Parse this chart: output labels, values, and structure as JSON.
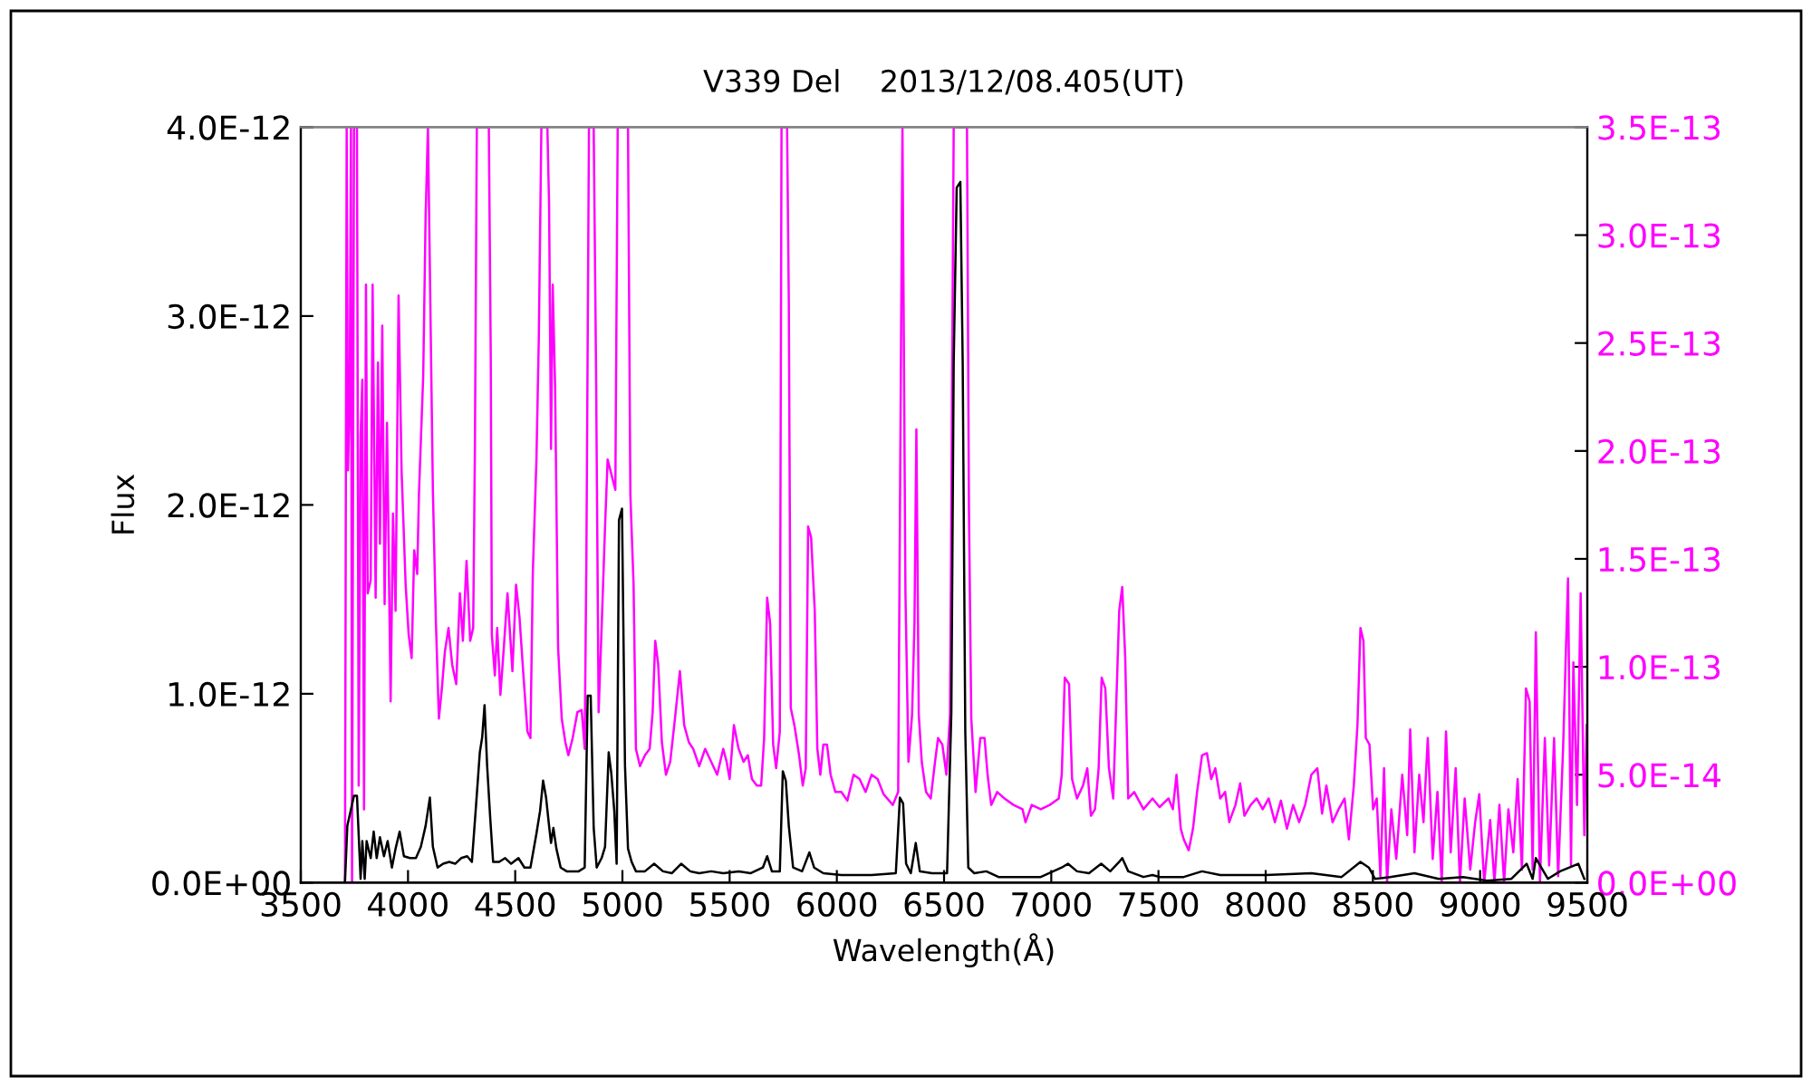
{
  "chart_data": {
    "type": "line",
    "title": "V339 Del    2013/12/08.405(UT)",
    "xlabel": "Wavelength(Å)",
    "ylabel": "Flux",
    "xlim": [
      3500,
      9500
    ],
    "xticks": [
      3500,
      4000,
      4500,
      5000,
      5500,
      6000,
      6500,
      7000,
      7500,
      8000,
      8500,
      9000,
      9500
    ],
    "ylim": [
      0,
      4e-12
    ],
    "yticks": [
      {
        "value": 0,
        "label": "0.0E+00"
      },
      {
        "value": 1e-12,
        "label": "1.0E-12"
      },
      {
        "value": 2e-12,
        "label": "2.0E-12"
      },
      {
        "value": 3e-12,
        "label": "3.0E-12"
      },
      {
        "value": 4e-12,
        "label": "4.0E-12"
      }
    ],
    "y2lim": [
      0,
      3.5e-13
    ],
    "y2ticks": [
      {
        "value": 0,
        "label": "0.0E+00"
      },
      {
        "value": 5e-14,
        "label": "5.0E-14"
      },
      {
        "value": 1e-13,
        "label": "1.0E-13"
      },
      {
        "value": 1.5e-13,
        "label": "1.5E-13"
      },
      {
        "value": 2e-13,
        "label": "2.0E-13"
      },
      {
        "value": 2.5e-13,
        "label": "2.5E-13"
      },
      {
        "value": 3e-13,
        "label": "3.0E-13"
      },
      {
        "value": 3.5e-13,
        "label": "3.5E-13"
      }
    ],
    "grid": false,
    "marker": "none",
    "line_style": "solid",
    "series": [
      {
        "color": "#000000",
        "x": [
          3706,
          3717,
          3748,
          3762,
          3779,
          3787,
          3798,
          3807,
          3826,
          3840,
          3854,
          3869,
          3888,
          3905,
          3925,
          3942,
          3961,
          3981,
          4009,
          4037,
          4060,
          4082,
          4102,
          4116,
          4138,
          4164,
          4192,
          4220,
          4248,
          4276,
          4298,
          4318,
          4335,
          4346,
          4357,
          4369,
          4383,
          4397,
          4425,
          4453,
          4481,
          4515,
          4543,
          4571,
          4599,
          4616,
          4630,
          4644,
          4658,
          4667,
          4678,
          4692,
          4712,
          4740,
          4768,
          4796,
          4824,
          4838,
          4852,
          4866,
          4880,
          4903,
          4919,
          4936,
          4948,
          4962,
          4973,
          4984,
          4998,
          5012,
          5026,
          5043,
          5063,
          5105,
          5148,
          5189,
          5231,
          5274,
          5316,
          5358,
          5414,
          5470,
          5542,
          5599,
          5655,
          5675,
          5697,
          5734,
          5748,
          5762,
          5776,
          5796,
          5838,
          5872,
          5894,
          5937,
          6021,
          6162,
          6275,
          6294,
          6309,
          6323,
          6345,
          6368,
          6387,
          6444,
          6514,
          6534,
          6545,
          6559,
          6576,
          6587,
          6599,
          6613,
          6641,
          6697,
          6754,
          6838,
          6951,
          7049,
          7078,
          7120,
          7176,
          7233,
          7275,
          7317,
          7331,
          7359,
          7430,
          7472,
          7505,
          7618,
          7703,
          7788,
          8000,
          8213,
          8354,
          8442,
          8481,
          8510,
          8580,
          8694,
          8807,
          8920,
          9033,
          9146,
          9217,
          9245,
          9260,
          9316,
          9373,
          9458,
          9486
        ],
        "values": [
          0,
          3e-13,
          4.6e-13,
          4.6e-13,
          2e-14,
          2.2e-13,
          2e-14,
          2.2e-13,
          1.3e-13,
          2.7e-13,
          1.3e-13,
          2.4e-13,
          1.4e-13,
          2.2e-13,
          8e-14,
          1.8e-13,
          2.7e-13,
          1.4e-13,
          1.3e-13,
          1.3e-13,
          1.9e-13,
          3e-13,
          4.5e-13,
          1.9e-13,
          8e-14,
          1e-13,
          1.1e-13,
          1e-13,
          1.3e-13,
          1.4e-13,
          1.1e-13,
          4.2e-13,
          6.9e-13,
          7.7e-13,
          9.4e-13,
          6.2e-13,
          3.5e-13,
          1.1e-13,
          1.1e-13,
          1.3e-13,
          1e-13,
          1.3e-13,
          8e-14,
          8e-14,
          2.6e-13,
          3.8e-13,
          5.4e-13,
          4.5e-13,
          3e-13,
          2.1e-13,
          2.9e-13,
          1.8e-13,
          8e-14,
          6e-14,
          6e-14,
          6e-14,
          8e-14,
          9.9e-13,
          9.9e-13,
          2.9e-13,
          8e-14,
          1.3e-13,
          1.9e-13,
          6.9e-13,
          5.8e-13,
          3.8e-13,
          1e-13,
          1.92e-12,
          1.98e-12,
          6.2e-13,
          1.8e-13,
          1.1e-13,
          6e-14,
          6e-14,
          1e-13,
          6e-14,
          5e-14,
          1e-13,
          6e-14,
          5e-14,
          6e-14,
          5e-14,
          6e-14,
          5e-14,
          8e-14,
          1.4e-13,
          6e-14,
          6e-14,
          5.9e-13,
          5.4e-13,
          3e-13,
          8e-14,
          6e-14,
          1.6e-13,
          8e-14,
          5e-14,
          4e-14,
          4e-14,
          5e-14,
          4.5e-13,
          4.2e-13,
          1e-13,
          5e-14,
          2.1e-13,
          6e-14,
          5e-14,
          5e-14,
          9e-13,
          2.75e-12,
          3.68e-12,
          3.71e-12,
          2.75e-12,
          8e-13,
          8e-14,
          5e-14,
          6e-14,
          3e-14,
          3e-14,
          3e-14,
          8e-14,
          1e-13,
          6e-14,
          5e-14,
          1e-13,
          6e-14,
          1.1e-13,
          1.3e-13,
          6e-14,
          3e-14,
          4e-14,
          3e-14,
          3e-14,
          6e-14,
          4e-14,
          4e-14,
          5e-14,
          3e-14,
          1.1e-13,
          8e-14,
          2e-14,
          3e-14,
          5e-14,
          2e-14,
          3e-14,
          1e-14,
          2e-14,
          1e-13,
          2e-14,
          1.3e-13,
          2e-14,
          6e-14,
          1e-13,
          2e-14
        ]
      },
      {
        "color": "#ff00ff",
        "axis": "y2",
        "x": [
          3706,
          3714,
          3720,
          3728,
          3734,
          3739,
          3748,
          3762,
          3770,
          3779,
          3787,
          3795,
          3804,
          3812,
          3826,
          3835,
          3849,
          3860,
          3869,
          3880,
          3891,
          3902,
          3919,
          3930,
          3942,
          3956,
          3970,
          3989,
          4003,
          4017,
          4029,
          4043,
          4051,
          4071,
          4082,
          4093,
          4116,
          4130,
          4144,
          4158,
          4172,
          4189,
          4206,
          4225,
          4242,
          4256,
          4273,
          4290,
          4304,
          4312,
          4321,
          4377,
          4386,
          4391,
          4405,
          4416,
          4431,
          4447,
          4464,
          4487,
          4504,
          4520,
          4537,
          4557,
          4571,
          4582,
          4599,
          4610,
          4622,
          4650,
          4658,
          4667,
          4675,
          4686,
          4700,
          4717,
          4734,
          4748,
          4768,
          4790,
          4810,
          4824,
          4832,
          4844,
          4866,
          4877,
          4889,
          4903,
          4919,
          4931,
          4967,
          4978,
          5026,
          5037,
          5052,
          5063,
          5082,
          5105,
          5127,
          5141,
          5153,
          5167,
          5184,
          5203,
          5223,
          5245,
          5268,
          5288,
          5310,
          5330,
          5358,
          5386,
          5414,
          5442,
          5470,
          5486,
          5500,
          5520,
          5542,
          5565,
          5585,
          5604,
          5627,
          5647,
          5661,
          5675,
          5689,
          5703,
          5717,
          5734,
          5742,
          5768,
          5776,
          5785,
          5802,
          5824,
          5841,
          5855,
          5866,
          5880,
          5897,
          5909,
          5923,
          5937,
          5954,
          5971,
          5993,
          6021,
          6049,
          6078,
          6106,
          6134,
          6162,
          6190,
          6218,
          6261,
          6286,
          6297,
          6306,
          6320,
          6334,
          6351,
          6362,
          6371,
          6382,
          6396,
          6416,
          6438,
          6458,
          6472,
          6492,
          6511,
          6528,
          6545,
          6607,
          6616,
          6627,
          6647,
          6669,
          6689,
          6703,
          6720,
          6748,
          6782,
          6824,
          6866,
          6880,
          6909,
          6951,
          6993,
          7035,
          7049,
          7063,
          7083,
          7097,
          7120,
          7148,
          7168,
          7185,
          7204,
          7221,
          7235,
          7252,
          7269,
          7289,
          7317,
          7331,
          7345,
          7359,
          7387,
          7430,
          7472,
          7505,
          7547,
          7567,
          7584,
          7604,
          7618,
          7641,
          7661,
          7680,
          7703,
          7726,
          7746,
          7765,
          7788,
          7811,
          7830,
          7859,
          7881,
          7901,
          7930,
          7958,
          7986,
          8014,
          8043,
          8071,
          8099,
          8128,
          8156,
          8184,
          8213,
          8241,
          8263,
          8283,
          8312,
          8340,
          8368,
          8388,
          8411,
          8428,
          8442,
          8456,
          8467,
          8484,
          8501,
          8518,
          8535,
          8552,
          8566,
          8586,
          8609,
          8637,
          8660,
          8674,
          8694,
          8716,
          8736,
          8756,
          8779,
          8801,
          8821,
          8841,
          8863,
          8886,
          8906,
          8928,
          8954,
          8977,
          8996,
          9019,
          9047,
          9067,
          9090,
          9112,
          9132,
          9155,
          9175,
          9195,
          9214,
          9231,
          9245,
          9260,
          9279,
          9302,
          9322,
          9345,
          9364,
          9387,
          9410,
          9424,
          9435,
          9452,
          9469,
          9486,
          9497
        ],
        "values": [
          0,
          3.5e-13,
          1.91e-13,
          2.22e-13,
          3.5e-13,
          0,
          3.5e-13,
          3.5e-13,
          4.5e-14,
          2.07e-13,
          2.33e-13,
          3.4e-14,
          2.77e-13,
          1.34e-13,
          1.4e-13,
          2.77e-13,
          1.32e-13,
          2.41e-13,
          1.57e-13,
          2.58e-13,
          1.29e-13,
          2.13e-13,
          8.4e-14,
          1.71e-13,
          1.26e-13,
          2.72e-13,
          1.91e-13,
          1.38e-13,
          1.15e-13,
          1.04e-13,
          1.54e-13,
          1.43e-13,
          1.8e-13,
          2.35e-13,
          3.08e-13,
          3.5e-13,
          1.82e-13,
          1.21e-13,
          7.6e-14,
          9e-14,
          1.07e-13,
          1.18e-13,
          1.01e-13,
          9.2e-14,
          1.34e-13,
          1.12e-13,
          1.49e-13,
          1.12e-13,
          1.18e-13,
          2.01e-13,
          3.5e-13,
          3.5e-13,
          2.43e-13,
          1.15e-13,
          9.6e-14,
          1.18e-13,
          8.7e-14,
          1.09e-13,
          1.34e-13,
          9.8e-14,
          1.38e-13,
          1.23e-13,
          9.8e-14,
          7e-14,
          6.7e-14,
          1.43e-13,
          1.96e-13,
          2.52e-13,
          3.5e-13,
          3.5e-13,
          3.14e-13,
          2.01e-13,
          2.77e-13,
          2.3e-13,
          1.09e-13,
          7.6e-14,
          6.5e-14,
          5.9e-14,
          6.7e-14,
          7.9e-14,
          8e-14,
          6.2e-14,
          1.51e-13,
          3.5e-13,
          3.5e-13,
          2.38e-13,
          7.9e-14,
          1.18e-13,
          1.65e-13,
          1.96e-13,
          1.82e-13,
          3.5e-13,
          3.5e-13,
          1.8e-13,
          1.38e-13,
          6.2e-14,
          5.4e-14,
          5.9e-14,
          6.2e-14,
          7.9e-14,
          1.12e-13,
          1.01e-13,
          6.5e-14,
          5e-14,
          5.6e-14,
          7.6e-14,
          9.8e-14,
          7.3e-14,
          6.5e-14,
          6.2e-14,
          5.4e-14,
          6.2e-14,
          5.6e-14,
          5e-14,
          6.2e-14,
          5.6e-14,
          4.8e-14,
          7.3e-14,
          6.2e-14,
          5.6e-14,
          5.9e-14,
          4.8e-14,
          4.5e-14,
          4.5e-14,
          6.7e-14,
          1.32e-13,
          1.2e-13,
          6.4e-14,
          5.3e-14,
          7e-14,
          3.5e-13,
          3.5e-13,
          2.69e-13,
          8.1e-14,
          7.3e-14,
          5.9e-14,
          4.5e-14,
          5.3e-14,
          1.65e-13,
          1.6e-13,
          1.26e-13,
          6.2e-14,
          5e-14,
          6.4e-14,
          6.4e-14,
          5e-14,
          4.2e-14,
          4.2e-14,
          3.8e-14,
          5e-14,
          4.8e-14,
          4.2e-14,
          5e-14,
          4.8e-14,
          4.1e-14,
          3.6e-14,
          4.2e-14,
          2.13e-13,
          3.5e-13,
          1.34e-13,
          5.6e-14,
          7.8e-14,
          1.2e-13,
          2.1e-13,
          7.8e-14,
          5.6e-14,
          4.2e-14,
          3.9e-14,
          5.6e-14,
          6.7e-14,
          6.4e-14,
          5e-14,
          7.8e-14,
          3.5e-13,
          3.5e-13,
          1.74e-13,
          7.6e-14,
          4.2e-14,
          6.7e-14,
          6.7e-14,
          5e-14,
          3.6e-14,
          4.2e-14,
          3.9e-14,
          3.6e-14,
          3.4e-14,
          2.8e-14,
          3.6e-14,
          3.4e-14,
          3.6e-14,
          3.9e-14,
          5e-14,
          9.5e-14,
          9.2e-14,
          4.8e-14,
          3.9e-14,
          4.5e-14,
          5.3e-14,
          3.1e-14,
          3.4e-14,
          5.3e-14,
          9.5e-14,
          9e-14,
          5.3e-14,
          3.9e-14,
          1.26e-13,
          1.37e-13,
          1.04e-13,
          3.9e-14,
          4.2e-14,
          3.4e-14,
          3.9e-14,
          3.5e-14,
          3.9e-14,
          3.4e-14,
          5e-14,
          2.5e-14,
          2e-14,
          1.5e-14,
          2.5e-14,
          4.2e-14,
          5.9e-14,
          6e-14,
          4.8e-14,
          5.3e-14,
          3.9e-14,
          4.2e-14,
          2.8e-14,
          3.6e-14,
          4.6e-14,
          3.1e-14,
          3.6e-14,
          3.9e-14,
          3.4e-14,
          3.9e-14,
          2.8e-14,
          3.8e-14,
          2.5e-14,
          3.6e-14,
          2.8e-14,
          3.6e-14,
          5e-14,
          5.3e-14,
          3.2e-14,
          4.5e-14,
          2.8e-14,
          3.4e-14,
          3.9e-14,
          2e-14,
          4.5e-14,
          7.3e-14,
          1.18e-13,
          1.12e-13,
          6.7e-14,
          6.4e-14,
          3.4e-14,
          3.9e-14,
          3e-15,
          5.3e-14,
          0,
          3.4e-14,
          1.1e-14,
          5e-14,
          2.2e-14,
          7.1e-14,
          1.4e-14,
          5e-14,
          2.8e-14,
          6.7e-14,
          1.1e-14,
          4.2e-14,
          0,
          7e-14,
          1.4e-14,
          5.3e-14,
          0,
          3.9e-14,
          6e-15,
          2.8e-14,
          4.1e-14,
          0,
          2.9e-14,
          0,
          3.6e-14,
          0,
          3.4e-14,
          1.4e-14,
          4.8e-14,
          6e-15,
          9e-14,
          8.4e-14,
          6e-15,
          1.16e-13,
          0,
          6.7e-14,
          8e-15,
          6.7e-14,
          3e-15,
          6.2e-14,
          1.41e-13,
          8e-15,
          1.02e-13,
          3.6e-14,
          1.34e-13,
          2.2e-14,
          7.3e-14
        ]
      }
    ]
  }
}
